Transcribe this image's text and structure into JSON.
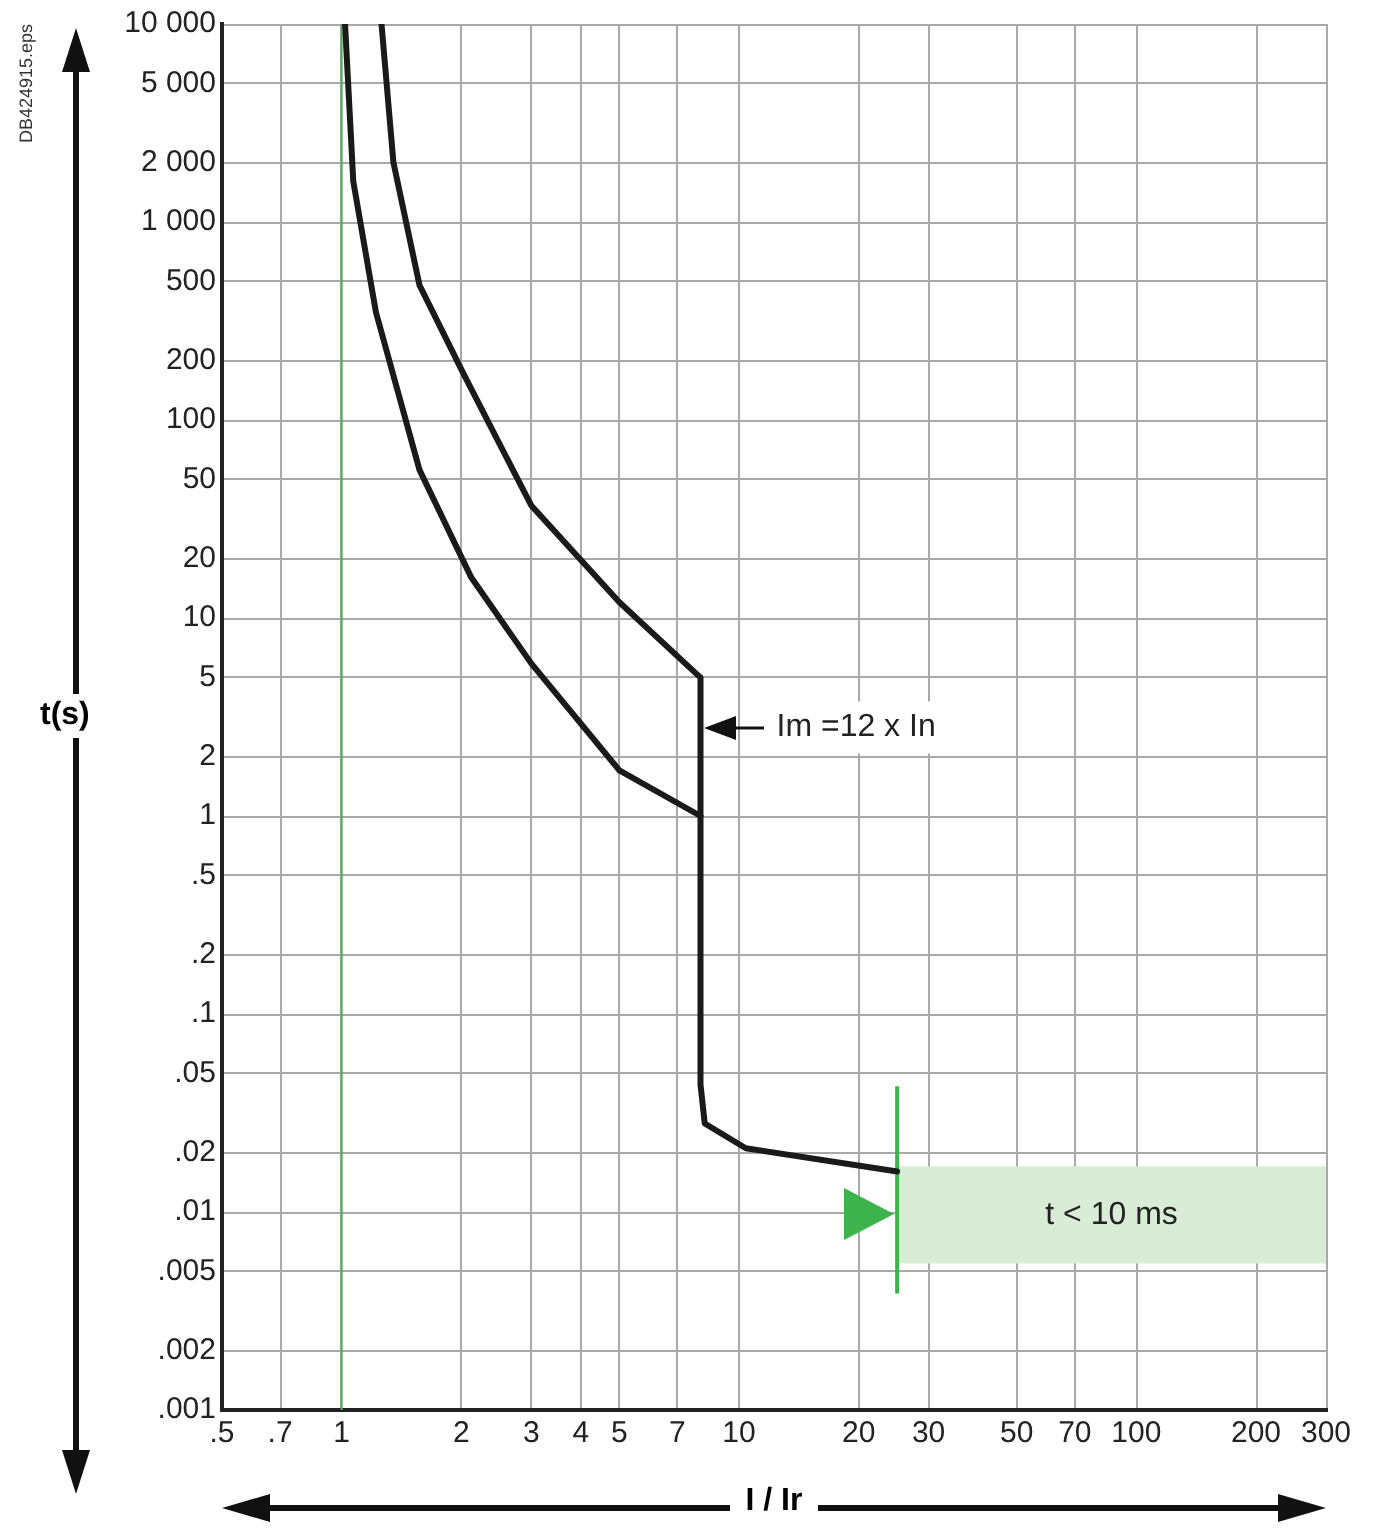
{
  "chart_data": {
    "type": "line",
    "xlabel": "I / Ir",
    "ylabel": "t(s)",
    "log": "xy",
    "xlim": [
      0.5,
      300
    ],
    "ylim": [
      0.001,
      10000
    ],
    "xticks": [
      {
        "value": 0.5,
        "label": ".5"
      },
      {
        "value": 0.7,
        "label": ".7"
      },
      1,
      2,
      3,
      4,
      5,
      7,
      10,
      20,
      30,
      50,
      70,
      100,
      200,
      300
    ],
    "yticks": [
      {
        "value": 0.001,
        "label": ".001"
      },
      {
        "value": 0.002,
        "label": ".002"
      },
      {
        "value": 0.005,
        "label": ".005"
      },
      {
        "value": 0.01,
        "label": ".01"
      },
      {
        "value": 0.02,
        "label": ".02"
      },
      {
        "value": 0.05,
        "label": ".05"
      },
      {
        "value": 0.1,
        "label": ".1"
      },
      {
        "value": 0.2,
        "label": ".2"
      },
      {
        "value": 0.5,
        "label": ".5"
      },
      1,
      2,
      5,
      10,
      20,
      50,
      100,
      200,
      500,
      {
        "value": 1000,
        "label": "1 000"
      },
      {
        "value": 2000,
        "label": "2 000"
      },
      {
        "value": 5000,
        "label": "5 000"
      },
      {
        "value": 10000,
        "label": "10 000"
      }
    ],
    "grid": true,
    "legend": false,
    "marker": "none",
    "line_style": "solid",
    "series": [
      {
        "color": "#1a1a1a",
        "x": [
          1.26,
          1.35,
          1.57,
          2.03,
          3.0,
          5.0,
          8.0,
          8.0,
          8.2,
          10.4,
          25
        ],
        "values": [
          10000,
          2000,
          480,
          170,
          37,
          12,
          5,
          0.044,
          0.028,
          0.021,
          0.016
        ]
      },
      {
        "color": "#1a1a1a",
        "x": [
          1.02,
          1.07,
          1.22,
          1.57,
          2.12,
          3.0,
          5.0,
          8.0
        ],
        "values": [
          10000,
          1600,
          350,
          56,
          16,
          5.9,
          1.7,
          1
        ]
      }
    ],
    "ref_lines": [
      {
        "axis": "x",
        "value": 1,
        "color": "#4cb050"
      },
      {
        "axis": "x",
        "value": 25,
        "color": "#3cb44b"
      }
    ],
    "bands": [
      {
        "axis": "y",
        "from": 0.0055,
        "to": 0.017,
        "label": "t < 10 ms",
        "color": "#d9ecd5"
      }
    ],
    "annotations": [
      {
        "text": "Im =12 x In",
        "x": 8,
        "y": 2.8
      },
      "DB424915.eps"
    ]
  }
}
